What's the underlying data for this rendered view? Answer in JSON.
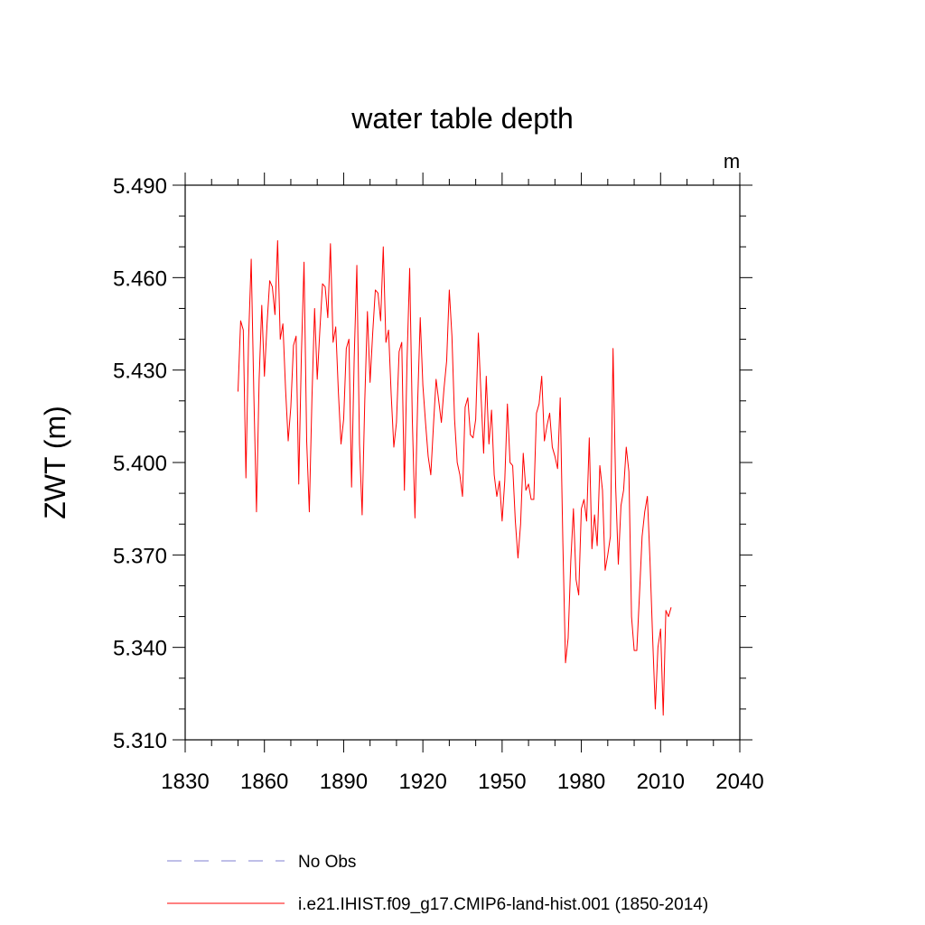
{
  "chart_data": {
    "type": "line",
    "title": "water table depth",
    "units": "m",
    "ylabel": "ZWT  (m)",
    "xlabel": "",
    "xlim": [
      1830,
      2040
    ],
    "ylim": [
      5.31,
      5.49
    ],
    "xticks": [
      1830,
      1860,
      1890,
      1920,
      1950,
      1980,
      2010,
      2040
    ],
    "xtick_labels": [
      "1830",
      "1860",
      "1890",
      "1920",
      "1950",
      "1980",
      "2010",
      "2040"
    ],
    "yticks": [
      5.31,
      5.34,
      5.37,
      5.4,
      5.43,
      5.46,
      5.49
    ],
    "ytick_labels": [
      "5.310",
      "5.340",
      "5.370",
      "5.400",
      "5.430",
      "5.460",
      "5.490"
    ],
    "grid": false,
    "legend_position": "bottom",
    "series": [
      {
        "name": "No Obs",
        "color": "#7f7fd0",
        "style": "dashed",
        "values": []
      },
      {
        "name": "i.e21.IHIST.f09_g17.CMIP6-land-hist.001 (1850-2014)",
        "color": "#ff0000",
        "style": "solid",
        "x_start": 1850,
        "x_step": 1,
        "values": [
          5.423,
          5.446,
          5.443,
          5.395,
          5.44,
          5.466,
          5.422,
          5.384,
          5.427,
          5.451,
          5.428,
          5.445,
          5.459,
          5.457,
          5.448,
          5.472,
          5.44,
          5.445,
          5.424,
          5.407,
          5.418,
          5.438,
          5.441,
          5.393,
          5.435,
          5.465,
          5.407,
          5.384,
          5.421,
          5.45,
          5.427,
          5.443,
          5.458,
          5.457,
          5.447,
          5.471,
          5.439,
          5.444,
          5.423,
          5.406,
          5.414,
          5.437,
          5.44,
          5.392,
          5.434,
          5.464,
          5.406,
          5.383,
          5.42,
          5.449,
          5.426,
          5.442,
          5.456,
          5.455,
          5.446,
          5.47,
          5.439,
          5.443,
          5.422,
          5.405,
          5.413,
          5.436,
          5.439,
          5.391,
          5.433,
          5.463,
          5.414,
          5.382,
          5.419,
          5.447,
          5.425,
          5.413,
          5.402,
          5.396,
          5.412,
          5.427,
          5.42,
          5.413,
          5.424,
          5.433,
          5.456,
          5.441,
          5.414,
          5.4,
          5.396,
          5.389,
          5.418,
          5.421,
          5.409,
          5.408,
          5.414,
          5.442,
          5.422,
          5.403,
          5.428,
          5.406,
          5.417,
          5.396,
          5.389,
          5.394,
          5.381,
          5.394,
          5.419,
          5.4,
          5.399,
          5.381,
          5.369,
          5.38,
          5.403,
          5.391,
          5.393,
          5.388,
          5.388,
          5.416,
          5.419,
          5.428,
          5.407,
          5.412,
          5.416,
          5.405,
          5.402,
          5.398,
          5.421,
          5.374,
          5.335,
          5.343,
          5.368,
          5.385,
          5.362,
          5.357,
          5.385,
          5.388,
          5.381,
          5.408,
          5.372,
          5.383,
          5.373,
          5.399,
          5.391,
          5.365,
          5.37,
          5.376,
          5.437,
          5.392,
          5.367,
          5.386,
          5.391,
          5.405,
          5.397,
          5.35,
          5.339,
          5.339,
          5.357,
          5.376,
          5.384,
          5.389,
          5.368,
          5.343,
          5.32,
          5.34,
          5.346,
          5.318,
          5.352,
          5.35,
          5.353
        ]
      }
    ]
  }
}
